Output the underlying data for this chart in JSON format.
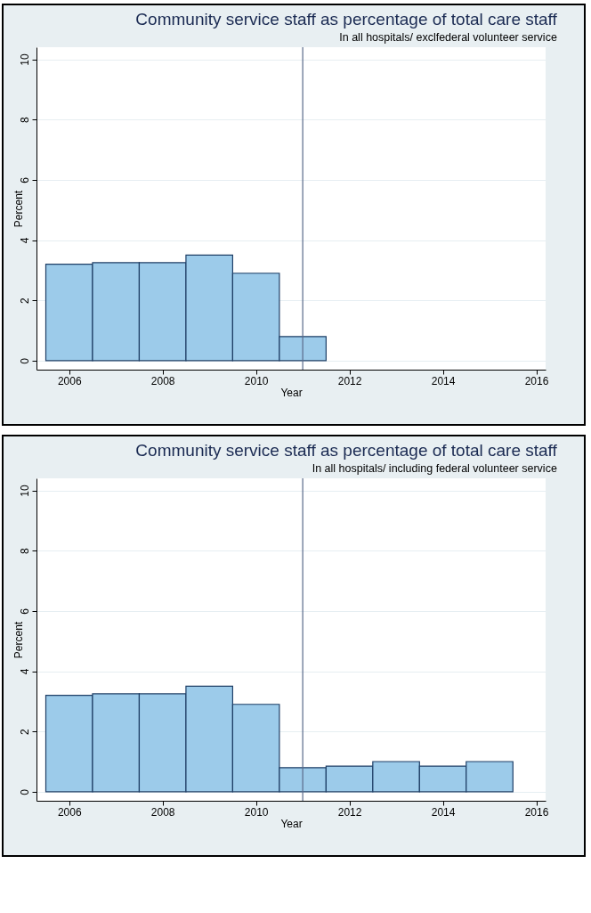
{
  "chart_data": [
    {
      "type": "histogram",
      "title": "Community service staff as percentage of total care staff",
      "subtitle": "In all hospitals/ exclfederal volunteer service",
      "xlabel": "Year",
      "ylabel": "Percent",
      "bins": [
        2005.5,
        2006.5,
        2007.5,
        2008.5,
        2009.5,
        2010.5,
        2011.5
      ],
      "values": [
        3.2,
        3.25,
        3.25,
        3.5,
        2.9,
        0.8
      ],
      "color": "#9ccbea",
      "xlim": [
        2005.3,
        2016.2
      ],
      "xticks": [
        2006,
        2008,
        2010,
        2012,
        2014,
        2016
      ],
      "ylim": [
        -0.3,
        10.4
      ],
      "yticks": [
        0,
        2,
        4,
        6,
        8,
        10
      ],
      "grid": "y",
      "ref_lines": [
        {
          "axis": "x",
          "value": 2011,
          "color": "#5a6a8a"
        }
      ]
    },
    {
      "type": "histogram",
      "title": "Community service staff as percentage of total care staff",
      "subtitle": "In all hospitals/ including federal volunteer service",
      "xlabel": "Year",
      "ylabel": "Percent",
      "bins": [
        2005.5,
        2006.5,
        2007.5,
        2008.5,
        2009.5,
        2010.5,
        2011.5,
        2012.5,
        2013.5,
        2014.5,
        2015.5
      ],
      "values": [
        3.2,
        3.25,
        3.25,
        3.5,
        2.9,
        0.8,
        0.85,
        1.0,
        0.85,
        1.0
      ],
      "color": "#9ccbea",
      "xlim": [
        2005.3,
        2016.2
      ],
      "xticks": [
        2006,
        2008,
        2010,
        2012,
        2014,
        2016
      ],
      "ylim": [
        -0.3,
        10.4
      ],
      "yticks": [
        0,
        2,
        4,
        6,
        8,
        10
      ],
      "grid": "y",
      "ref_lines": [
        {
          "axis": "x",
          "value": 2011,
          "color": "#5a6a8a"
        }
      ]
    }
  ]
}
